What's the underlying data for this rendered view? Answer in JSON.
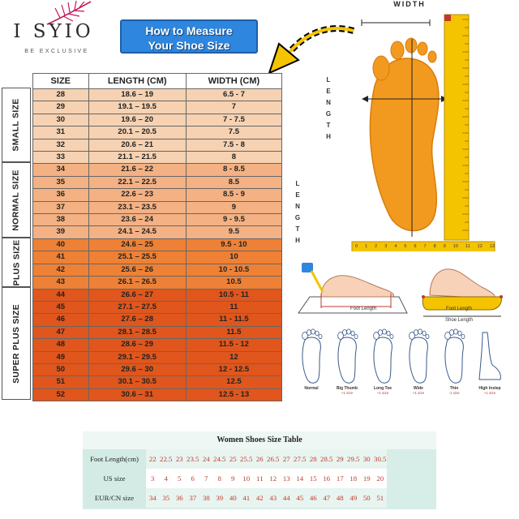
{
  "brand": {
    "name": "I SYIO",
    "tagline": "BE EXCLUSIVE"
  },
  "banner": {
    "line1": "How to Measure",
    "line2": "Your Shoe Size"
  },
  "size_table": {
    "headers": [
      "SIZE",
      "LENGTH (CM)",
      "WIDTH (CM)"
    ],
    "groups": [
      {
        "label": "SMALL SIZE",
        "color": "#f6d2b2",
        "rows": [
          [
            "28",
            "18.6 – 19",
            "6.5 - 7"
          ],
          [
            "29",
            "19.1 – 19.5",
            "7"
          ],
          [
            "30",
            "19.6 – 20",
            "7 - 7.5"
          ],
          [
            "31",
            "20.1 – 20.5",
            "7.5"
          ],
          [
            "32",
            "20.6 – 21",
            "7.5 - 8"
          ],
          [
            "33",
            "21.1 – 21.5",
            "8"
          ]
        ]
      },
      {
        "label": "NORMAL SIZE",
        "color": "#f4b183",
        "rows": [
          [
            "34",
            "21.6 – 22",
            "8 - 8.5"
          ],
          [
            "35",
            "22.1 – 22.5",
            "8.5"
          ],
          [
            "36",
            "22.6 – 23",
            "8.5 - 9"
          ],
          [
            "37",
            "23.1 – 23.5",
            "9"
          ],
          [
            "38",
            "23.6 – 24",
            "9 - 9.5"
          ],
          [
            "39",
            "24.1 – 24.5",
            "9.5"
          ]
        ]
      },
      {
        "label": "PLUS SIZE",
        "color": "#ee8135",
        "rows": [
          [
            "40",
            "24.6 – 25",
            "9.5 - 10"
          ],
          [
            "41",
            "25.1 – 25.5",
            "10"
          ],
          [
            "42",
            "25.6 – 26",
            "10 - 10.5"
          ],
          [
            "43",
            "26.1 – 26.5",
            "10.5"
          ]
        ]
      },
      {
        "label": "SUPER PLUS SIZE",
        "color": "#e0561c",
        "rows": [
          [
            "44",
            "26.6 – 27",
            "10.5 - 11"
          ],
          [
            "45",
            "27.1 – 27.5",
            "11"
          ],
          [
            "46",
            "27.6 – 28",
            "11 - 11.5"
          ],
          [
            "47",
            "28.1 – 28.5",
            "11.5"
          ],
          [
            "48",
            "28.6 – 29",
            "11.5 - 12"
          ],
          [
            "49",
            "29.1 – 29.5",
            "12"
          ],
          [
            "50",
            "29.6 – 30",
            "12 - 12.5"
          ],
          [
            "51",
            "30.1 – 30.5",
            "12.5"
          ],
          [
            "52",
            "30.6 – 31",
            "12.5 - 13"
          ]
        ]
      }
    ]
  },
  "diagram": {
    "width_label": "WIDTH",
    "length_label": "LENGTH",
    "ruler_ticks": [
      "0",
      "1",
      "2",
      "3",
      "4",
      "5",
      "6",
      "7",
      "8",
      "9",
      "10",
      "11",
      "12",
      "13"
    ],
    "foot_length_label": "Foot Length",
    "shoe_length_label": "Shoe Length",
    "foot_types": [
      {
        "name": "Normal",
        "note": ""
      },
      {
        "name": "Big Thumb",
        "note": "+1 size"
      },
      {
        "name": "Long Toe",
        "note": "+1 size"
      },
      {
        "name": "Wide",
        "note": "+1 size"
      },
      {
        "name": "Thin",
        "note": "-1 size"
      },
      {
        "name": "High Instep",
        "note": "+1 size"
      }
    ]
  },
  "women_table": {
    "title": "Women Shoes Size Table",
    "rows": [
      {
        "label": "Foot Length(cm)",
        "values": [
          "22",
          "22.5",
          "23",
          "23.5",
          "24",
          "24.5",
          "25",
          "25.5",
          "26",
          "26.5",
          "27",
          "27.5",
          "28",
          "28.5",
          "29",
          "29.5",
          "30",
          "30.5"
        ]
      },
      {
        "label": "US size",
        "values": [
          "3",
          "4",
          "5",
          "6",
          "7",
          "8",
          "9",
          "10",
          "11",
          "12",
          "13",
          "14",
          "15",
          "16",
          "17",
          "18",
          "19",
          "20"
        ]
      },
      {
        "label": "EUR/CN size",
        "values": [
          "34",
          "35",
          "36",
          "37",
          "38",
          "39",
          "40",
          "41",
          "42",
          "43",
          "44",
          "45",
          "46",
          "47",
          "48",
          "49",
          "50",
          "51"
        ]
      }
    ]
  },
  "colors": {
    "banner_blue": "#2e86de",
    "ruler_yellow": "#f5c400",
    "foot_orange": "#f29a1f",
    "accent_red": "#c0392b"
  }
}
